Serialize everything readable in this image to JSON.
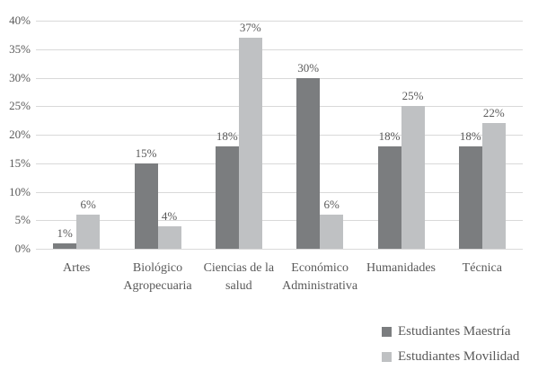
{
  "chart_data": {
    "type": "bar",
    "title": "",
    "xlabel": "",
    "ylabel": "",
    "categories": [
      "Artes",
      "Biológico Agropecuaria",
      "Ciencias de la salud",
      "Económico Administrativa",
      "Humanidades",
      "Técnica"
    ],
    "series": [
      {
        "name": "Estudiantes Maestría",
        "color": "#7b7d7f",
        "values": [
          1,
          15,
          18,
          30,
          18,
          18
        ],
        "labels": [
          "1%",
          "15%",
          "18%",
          "30%",
          "18%",
          "18%"
        ]
      },
      {
        "name": "Estudiantes Movilidad",
        "color": "#bfc1c3",
        "values": [
          6,
          4,
          37,
          6,
          25,
          22
        ],
        "labels": [
          "6%",
          "4%",
          "37%",
          "6%",
          "25%",
          "22%"
        ]
      }
    ],
    "ylim": [
      0,
      40
    ],
    "ytick_step": 5,
    "ytick_labels": [
      "0%",
      "5%",
      "10%",
      "15%",
      "20%",
      "25%",
      "30%",
      "35%",
      "40%"
    ],
    "grid": true,
    "data_labels": "outside-end",
    "legend": {
      "position": "bottom-right",
      "entries": [
        "Estudiantes Maestría",
        "Estudiantes Movilidad"
      ]
    }
  },
  "colors": {
    "background": "#ffffff",
    "gridline": "#d9d9d9",
    "text": "#595959"
  }
}
